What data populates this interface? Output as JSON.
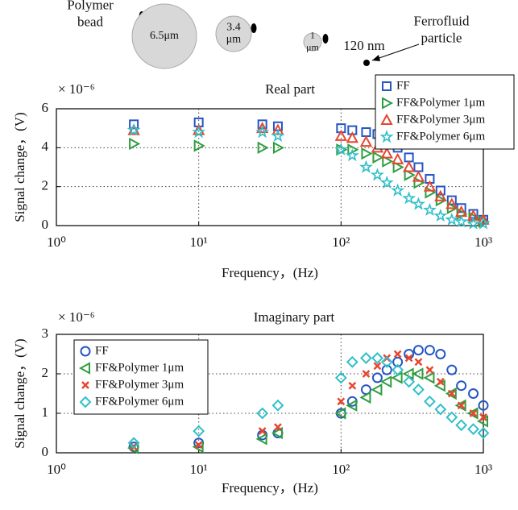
{
  "illustration": {
    "polymer_label": "Polymer bead",
    "bead_large": "6.5μm",
    "bead_medium": "3.4 μm",
    "bead_small": "1 μm",
    "particle_size": "120 nm",
    "particle_label": "Ferrofluid particle"
  },
  "chart_data": [
    {
      "type": "scatter",
      "title": "Real part",
      "y_multiplier": "× 10⁻⁶",
      "xlabel": "Frequency，(Hz)",
      "ylabel": "Signal change，(V)",
      "x_scale": "log",
      "grid": true,
      "legend": "upper right",
      "x": [
        3.5,
        10,
        28,
        36,
        100,
        120,
        150,
        180,
        210,
        250,
        300,
        350,
        420,
        500,
        600,
        700,
        850,
        1000
      ],
      "xlim": [
        1,
        1000
      ],
      "xticks": [
        {
          "value": 1,
          "label": "10⁰"
        },
        {
          "value": 10,
          "label": "10¹"
        },
        {
          "value": 100,
          "label": "10²"
        },
        {
          "value": 1000,
          "label": "10³"
        }
      ],
      "ylim": [
        0,
        6
      ],
      "yticks": [
        0,
        2,
        4,
        6
      ],
      "series": [
        {
          "name": "FF",
          "color": "#2456c4",
          "marker": "square",
          "values": [
            5.2,
            5.3,
            5.2,
            5.1,
            5.0,
            4.9,
            4.8,
            4.7,
            4.4,
            4.0,
            3.5,
            3.0,
            2.4,
            1.8,
            1.3,
            0.9,
            0.6,
            0.3
          ]
        },
        {
          "name": "FF&Polymer 1μm",
          "color": "#2e9e3e",
          "marker": "triangle-right",
          "values": [
            4.2,
            4.1,
            4.0,
            4.0,
            3.9,
            3.9,
            3.7,
            3.5,
            3.3,
            3.0,
            2.6,
            2.2,
            1.7,
            1.3,
            0.9,
            0.6,
            0.4,
            0.2
          ]
        },
        {
          "name": "FF&Polymer 3μm",
          "color": "#e8452e",
          "marker": "triangle-up",
          "values": [
            4.9,
            4.9,
            5.0,
            4.9,
            4.6,
            4.5,
            4.3,
            4.0,
            3.7,
            3.4,
            3.0,
            2.5,
            2.0,
            1.5,
            1.1,
            0.7,
            0.5,
            0.3
          ]
        },
        {
          "name": "FF&Polymer 6μm",
          "color": "#2fbfc9",
          "marker": "star",
          "values": [
            4.9,
            4.8,
            4.8,
            4.6,
            3.9,
            3.6,
            3.0,
            2.6,
            2.2,
            1.8,
            1.4,
            1.1,
            0.8,
            0.5,
            0.3,
            0.2,
            0.1,
            0.1
          ]
        }
      ]
    },
    {
      "type": "scatter",
      "title": "Imaginary part",
      "y_multiplier": "× 10⁻⁶",
      "xlabel": "Frequency，(Hz)",
      "ylabel": "Signal change，(V)",
      "x_scale": "log",
      "grid": true,
      "legend": "upper left",
      "x": [
        3.5,
        10,
        28,
        36,
        100,
        120,
        150,
        180,
        210,
        250,
        300,
        350,
        420,
        500,
        600,
        700,
        850,
        1000
      ],
      "xlim": [
        1,
        1000
      ],
      "xticks": [
        {
          "value": 1,
          "label": "10⁰"
        },
        {
          "value": 10,
          "label": "10¹"
        },
        {
          "value": 100,
          "label": "10²"
        },
        {
          "value": 1000,
          "label": "10³"
        }
      ],
      "ylim": [
        0,
        3
      ],
      "yticks": [
        0,
        1,
        2,
        3
      ],
      "series": [
        {
          "name": "FF",
          "color": "#2456c4",
          "marker": "circle",
          "values": [
            0.15,
            0.25,
            0.45,
            0.5,
            1.0,
            1.3,
            1.6,
            1.9,
            2.1,
            2.3,
            2.5,
            2.6,
            2.6,
            2.5,
            2.1,
            1.7,
            1.5,
            1.2
          ]
        },
        {
          "name": "FF&Polymer 1μm",
          "color": "#2e9e3e",
          "marker": "triangle-left",
          "values": [
            0.12,
            0.15,
            0.35,
            0.5,
            1.0,
            1.2,
            1.4,
            1.6,
            1.8,
            1.9,
            2.0,
            2.0,
            1.9,
            1.7,
            1.5,
            1.2,
            1.0,
            0.8
          ]
        },
        {
          "name": "FF&Polymer 3μm",
          "color": "#e8452e",
          "marker": "x",
          "values": [
            0.15,
            0.2,
            0.55,
            0.65,
            1.3,
            1.7,
            2.0,
            2.2,
            2.4,
            2.5,
            2.4,
            2.3,
            2.1,
            1.8,
            1.5,
            1.2,
            1.0,
            0.9
          ]
        },
        {
          "name": "FF&Polymer 6μm",
          "color": "#2fbfc9",
          "marker": "diamond",
          "values": [
            0.25,
            0.55,
            1.0,
            1.2,
            1.9,
            2.3,
            2.4,
            2.4,
            2.3,
            2.1,
            1.8,
            1.6,
            1.3,
            1.1,
            0.9,
            0.7,
            0.6,
            0.5
          ]
        }
      ]
    }
  ]
}
